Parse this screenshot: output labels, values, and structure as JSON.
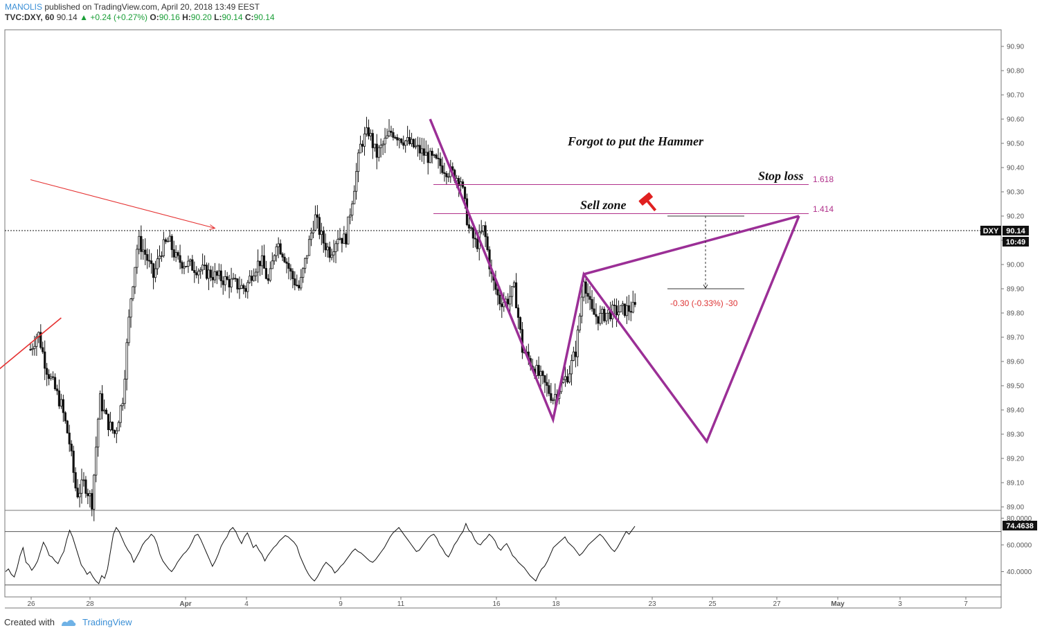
{
  "header": {
    "author": "MANOLIS",
    "published": "published on TradingView.com, April 20, 2018 13:49 EEST",
    "symbol": "TVC:DXY, 60",
    "last": "90.14",
    "change": "+0.24 (+0.27%)",
    "open_label": "O:",
    "open": "90.16",
    "high_label": "H:",
    "high": "90.20",
    "low_label": "L:",
    "low": "90.14",
    "close_label": "C:",
    "close": "90.14"
  },
  "footer": {
    "created_with": "Created with",
    "brand": "TradingView"
  },
  "annotations": {
    "hammer_note": "Forgot to put the Hammer",
    "stop_loss": "Stop loss",
    "sell_zone": "Sell zone",
    "fib_1618": "1.618",
    "fib_1414": "1.414",
    "measure": "-0.30 (-0.33%) -30"
  },
  "price_tag": {
    "symbol": "DXY",
    "price": "90.14",
    "countdown": "10:49",
    "rsi_value": "74.4638"
  },
  "colors": {
    "pattern": "#9b2f96",
    "fib_line": "#b0308a",
    "trend_line": "#e53030",
    "candle": "#111111",
    "grid_line": "#555555",
    "tag_bg": "#111111"
  },
  "icons": {
    "hammer": "hammer-icon",
    "logo": "tradingview-logo-icon"
  },
  "chart_data": [
    {
      "type": "candlestick",
      "title": "",
      "price_axis": {
        "range": [
          89.0,
          90.9
        ],
        "ticks": [
          "89.00",
          "89.10",
          "89.20",
          "89.30",
          "89.40",
          "89.50",
          "89.60",
          "89.70",
          "89.80",
          "89.90",
          "90.00",
          "90.10",
          "90.20",
          "90.30",
          "90.40",
          "90.50",
          "90.60",
          "90.70",
          "90.80",
          "90.90"
        ]
      },
      "time_axis": {
        "ticks": [
          "26",
          "28",
          "Apr",
          "4",
          "9",
          "11",
          "16",
          "18",
          "23",
          "25",
          "27",
          "May",
          "3",
          "7"
        ]
      },
      "current_price": 90.14,
      "price_path": [
        [
          "Mar 26 00:00",
          89.65
        ],
        [
          "Mar 26 06:00",
          89.72
        ],
        [
          "Mar 26 12:00",
          89.58
        ],
        [
          "Mar 26 18:00",
          89.5
        ],
        [
          "Mar 27 00:00",
          89.42
        ],
        [
          "Mar 27 06:00",
          89.28
        ],
        [
          "Mar 27 12:00",
          89.05
        ],
        [
          "Mar 27 18:00",
          89.1
        ],
        [
          "Mar 28 00:00",
          89.02
        ],
        [
          "Mar 28 06:00",
          89.45
        ],
        [
          "Mar 28 12:00",
          89.35
        ],
        [
          "Mar 28 18:00",
          89.3
        ],
        [
          "Mar 29 00:00",
          89.45
        ],
        [
          "Mar 29 06:00",
          89.85
        ],
        [
          "Mar 29 12:00",
          90.1
        ],
        [
          "Mar 29 18:00",
          90.04
        ],
        [
          "Mar 30 00:00",
          89.95
        ],
        [
          "Mar 30 06:00",
          90.06
        ],
        [
          "Mar 30 12:00",
          90.1
        ],
        [
          "Mar 30 18:00",
          90.02
        ],
        [
          "Apr 02 00:00",
          89.9
        ],
        [
          "Apr 02 06:00",
          89.98
        ],
        [
          "Apr 02 12:00",
          90.02
        ],
        [
          "Apr 02 18:00",
          89.92
        ],
        [
          "Apr 03 00:00",
          90.1
        ],
        [
          "Apr 03 06:00",
          90.04
        ],
        [
          "Apr 03 12:00",
          89.95
        ],
        [
          "Apr 03 18:00",
          89.9
        ],
        [
          "Apr 04 00:00",
          90.05
        ],
        [
          "Apr 04 06:00",
          90.2
        ],
        [
          "Apr 04 12:00",
          90.1
        ],
        [
          "Apr 04 18:00",
          90.05
        ],
        [
          "Apr 05 00:00",
          90.12
        ],
        [
          "Apr 05 06:00",
          90.1
        ],
        [
          "Apr 05 12:00",
          90.3
        ],
        [
          "Apr 05 18:00",
          90.5
        ],
        [
          "Apr 06 00:00",
          90.55
        ],
        [
          "Apr 06 06:00",
          90.45
        ],
        [
          "Apr 06 12:00",
          90.5
        ],
        [
          "Apr 06 18:00",
          90.55
        ],
        [
          "Apr 09 00:00",
          90.35
        ],
        [
          "Apr 09 06:00",
          90.15
        ],
        [
          "Apr 09 12:00",
          90.08
        ],
        [
          "Apr 09 18:00",
          90.15
        ],
        [
          "Apr 10 00:00",
          89.95
        ],
        [
          "Apr 10 06:00",
          89.85
        ],
        [
          "Apr 10 12:00",
          89.85
        ],
        [
          "Apr 10 18:00",
          89.9
        ],
        [
          "Apr 11 00:00",
          89.65
        ],
        [
          "Apr 11 06:00",
          89.6
        ],
        [
          "Apr 11 12:00",
          89.55
        ],
        [
          "Apr 11 18:00",
          89.5
        ],
        [
          "Apr 12 00:00",
          89.45
        ],
        [
          "Apr 12 06:00",
          89.5
        ],
        [
          "Apr 12 12:00",
          89.55
        ],
        [
          "Apr 12 18:00",
          89.65
        ],
        [
          "Apr 13 00:00",
          89.95
        ],
        [
          "Apr 13 06:00",
          89.8
        ],
        [
          "Apr 13 12:00",
          89.78
        ],
        [
          "Apr 13 18:00",
          89.8
        ],
        [
          "Apr 16 00:00",
          89.85
        ],
        [
          "Apr 16 06:00",
          89.78
        ],
        [
          "Apr 16 12:00",
          89.82
        ],
        [
          "Apr 16 18:00",
          89.75
        ],
        [
          "Apr 17 00:00",
          89.6
        ],
        [
          "Apr 17 06:00",
          89.45
        ],
        [
          "Apr 17 12:00",
          89.42
        ],
        [
          "Apr 17 18:00",
          89.3
        ],
        [
          "Apr 18 00:00",
          89.45
        ],
        [
          "Apr 18 06:00",
          89.6
        ],
        [
          "Apr 18 12:00",
          89.55
        ],
        [
          "Apr 18 18:00",
          89.5
        ],
        [
          "Apr 19 00:00",
          89.6
        ],
        [
          "Apr 19 06:00",
          89.62
        ],
        [
          "Apr 19 12:00",
          89.65
        ],
        [
          "Apr 19 18:00",
          89.6
        ],
        [
          "Apr 20 00:00",
          89.85
        ],
        [
          "Apr 20 06:00",
          89.95
        ],
        [
          "Apr 20 09:00",
          90.05
        ],
        [
          "Apr 20 12:00",
          90.14
        ]
      ],
      "pattern_points": [
        [
          "Apr 08",
          90.6
        ],
        [
          "Apr 12",
          89.36
        ],
        [
          "Apr 13",
          89.96
        ],
        [
          "Apr 17",
          89.27
        ],
        [
          "Apr 20",
          90.2
        ]
      ],
      "pattern_shortcut": [
        [
          "Apr 13",
          89.96
        ],
        [
          "Apr 20",
          90.2
        ]
      ],
      "fib_levels": [
        {
          "label": "1.618",
          "value": 90.33
        },
        {
          "label": "1.414",
          "value": 90.21
        }
      ],
      "measure": {
        "from": 90.2,
        "to": 89.9,
        "text": "-0.30 (-0.33%) -30"
      },
      "trend_lines": [
        {
          "from": [
            "Mar 26",
            90.35
          ],
          "to": [
            "Apr 01",
            90.15
          ]
        },
        {
          "from": [
            "Mar 25",
            89.57
          ],
          "to": [
            "Mar 27",
            89.78
          ]
        }
      ]
    },
    {
      "type": "line",
      "title": "",
      "y_ticks": [
        "40.0000",
        "60.0000",
        "80.0000"
      ],
      "reference_lines": [
        30,
        70
      ],
      "current_value": 74.4638,
      "values": [
        40,
        42,
        38,
        36,
        43,
        52,
        58,
        47,
        45,
        41,
        44,
        48,
        55,
        62,
        58,
        52,
        51,
        48,
        46,
        51,
        55,
        64,
        71,
        66,
        59,
        52,
        45,
        42,
        38,
        40,
        36,
        33,
        31,
        37,
        35,
        42,
        55,
        68,
        73,
        70,
        65,
        60,
        56,
        53,
        47,
        51,
        55,
        60,
        63,
        65,
        68,
        66,
        61,
        53,
        48,
        45,
        42,
        40,
        43,
        47,
        50,
        53,
        55,
        58,
        62,
        67,
        68,
        64,
        59,
        54,
        49,
        44,
        48,
        53,
        59,
        63,
        66,
        71,
        73,
        70,
        65,
        61,
        66,
        69,
        64,
        58,
        60,
        56,
        53,
        48,
        52,
        55,
        58,
        60,
        63,
        65,
        67,
        66,
        64,
        62,
        59,
        52,
        47,
        42,
        38,
        35,
        33,
        36,
        40,
        44,
        47,
        45,
        43,
        39,
        41,
        44,
        46,
        49,
        52,
        55,
        57,
        55,
        54,
        52,
        50,
        48,
        47,
        49,
        52,
        55,
        58,
        62,
        66,
        69,
        71,
        73,
        70,
        67,
        64,
        61,
        58,
        55,
        56,
        59,
        62,
        65,
        67,
        68,
        65,
        60,
        57,
        53,
        51,
        55,
        60,
        63,
        67,
        70,
        76,
        71,
        69,
        64,
        61,
        60,
        63,
        65,
        68,
        66,
        63,
        58,
        56,
        59,
        61,
        57,
        52,
        50,
        47,
        45,
        43,
        40,
        37,
        35,
        33,
        38,
        42,
        44,
        48,
        53,
        58,
        60,
        62,
        64,
        66,
        62,
        60,
        58,
        55,
        52,
        54,
        57,
        60,
        62,
        64,
        66,
        68,
        66,
        63,
        60,
        57,
        55,
        58,
        62,
        66,
        70,
        68,
        71,
        74
      ]
    }
  ]
}
